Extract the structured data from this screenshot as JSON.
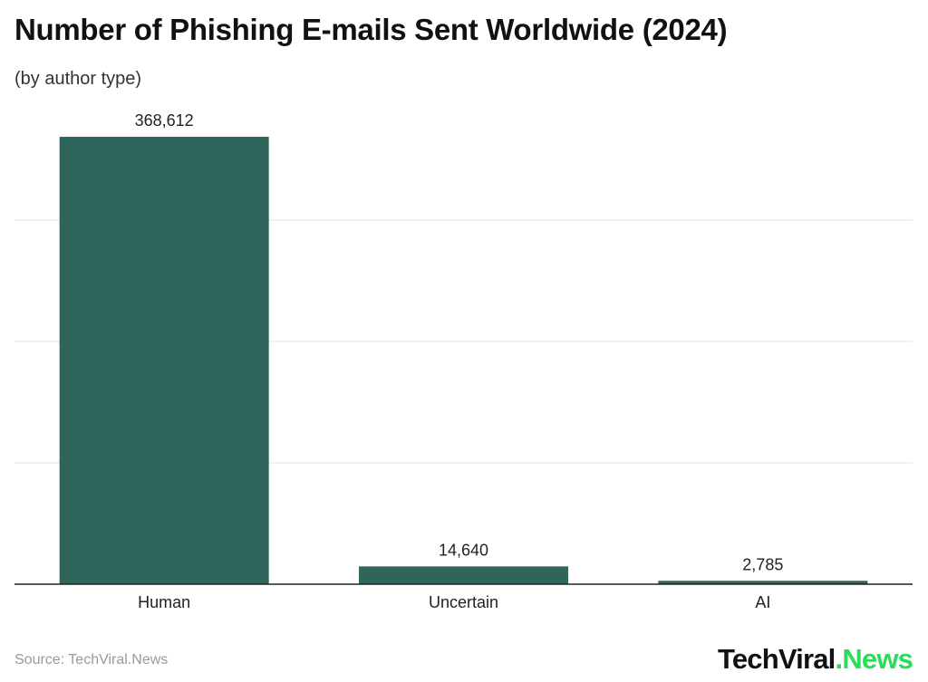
{
  "chart_data": {
    "type": "bar",
    "title": "Number of Phishing E-mails Sent Worldwide (2024)",
    "subtitle": "(by author type)",
    "categories": [
      "Human",
      "Uncertain",
      "AI"
    ],
    "values": [
      368612,
      14640,
      2785
    ],
    "value_labels": [
      "368,612",
      "14,640",
      "2,785"
    ],
    "xlabel": "",
    "ylabel": "",
    "ylim": [
      0,
      400000
    ],
    "gridlines": [
      100000,
      200000,
      300000
    ],
    "grid": true,
    "colors": {
      "bar": "#2e665c",
      "grid": "#e3e3e3",
      "axis": "#222222"
    }
  },
  "footer": {
    "source": "Source: TechViral.News",
    "logo_main": "TechViral",
    "logo_accent": ".News"
  }
}
